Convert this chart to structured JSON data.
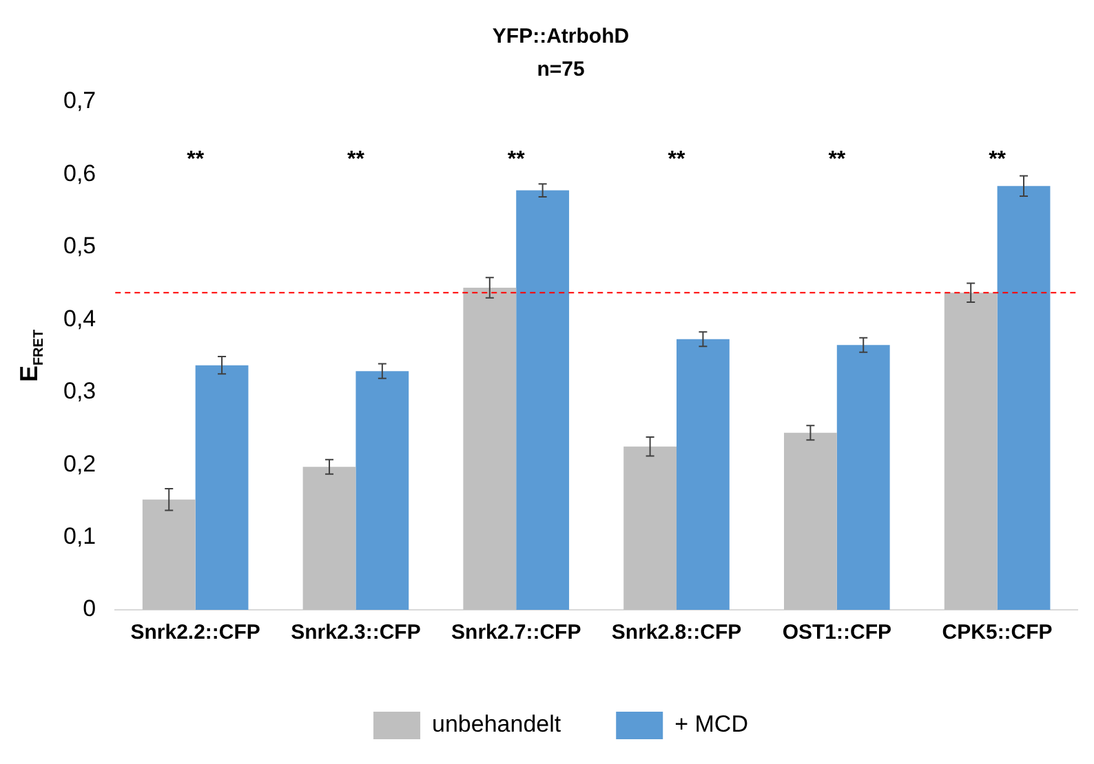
{
  "chart_data": {
    "type": "bar",
    "title": "YFP::AtrbohD",
    "subtitle": "n=75",
    "ylabel": "E$_{FRET}$",
    "categories": [
      "Snrk2.2::CFP",
      "Snrk2.3::CFP",
      "Snrk2.7::CFP",
      "Snrk2.8::CFP",
      "OST1::CFP",
      "CPK5::CFP"
    ],
    "series": [
      {
        "name": "unbehandelt",
        "color": "#bfbfbf",
        "values": [
          0.152,
          0.197,
          0.444,
          0.225,
          0.244,
          0.437
        ],
        "errors": [
          0.015,
          0.01,
          0.014,
          0.013,
          0.01,
          0.013
        ]
      },
      {
        "name": "+ MCD",
        "color": "#5b9bd5",
        "values": [
          0.337,
          0.329,
          0.578,
          0.373,
          0.365,
          0.584
        ],
        "errors": [
          0.012,
          0.01,
          0.009,
          0.01,
          0.01,
          0.014
        ]
      }
    ],
    "ylim": [
      0,
      0.7
    ],
    "yticks": [
      0,
      {
        "value": 0.1,
        "label": "0,1"
      },
      {
        "value": 0.2,
        "label": "0,2"
      },
      {
        "value": 0.3,
        "label": "0,3"
      },
      {
        "value": 0.4,
        "label": "0,4"
      },
      {
        "value": 0.5,
        "label": "0,5"
      },
      {
        "value": 0.6,
        "label": "0,6"
      },
      {
        "value": 0.7,
        "label": "0,7"
      }
    ],
    "ref_lines": [
      {
        "axis": "y",
        "value": 0.437,
        "color": "#ff0000",
        "line_style": "dashed"
      }
    ],
    "annotations": [
      "**",
      "**",
      "**",
      "**",
      "**",
      "**"
    ],
    "grid": false,
    "legend": "bottom"
  }
}
